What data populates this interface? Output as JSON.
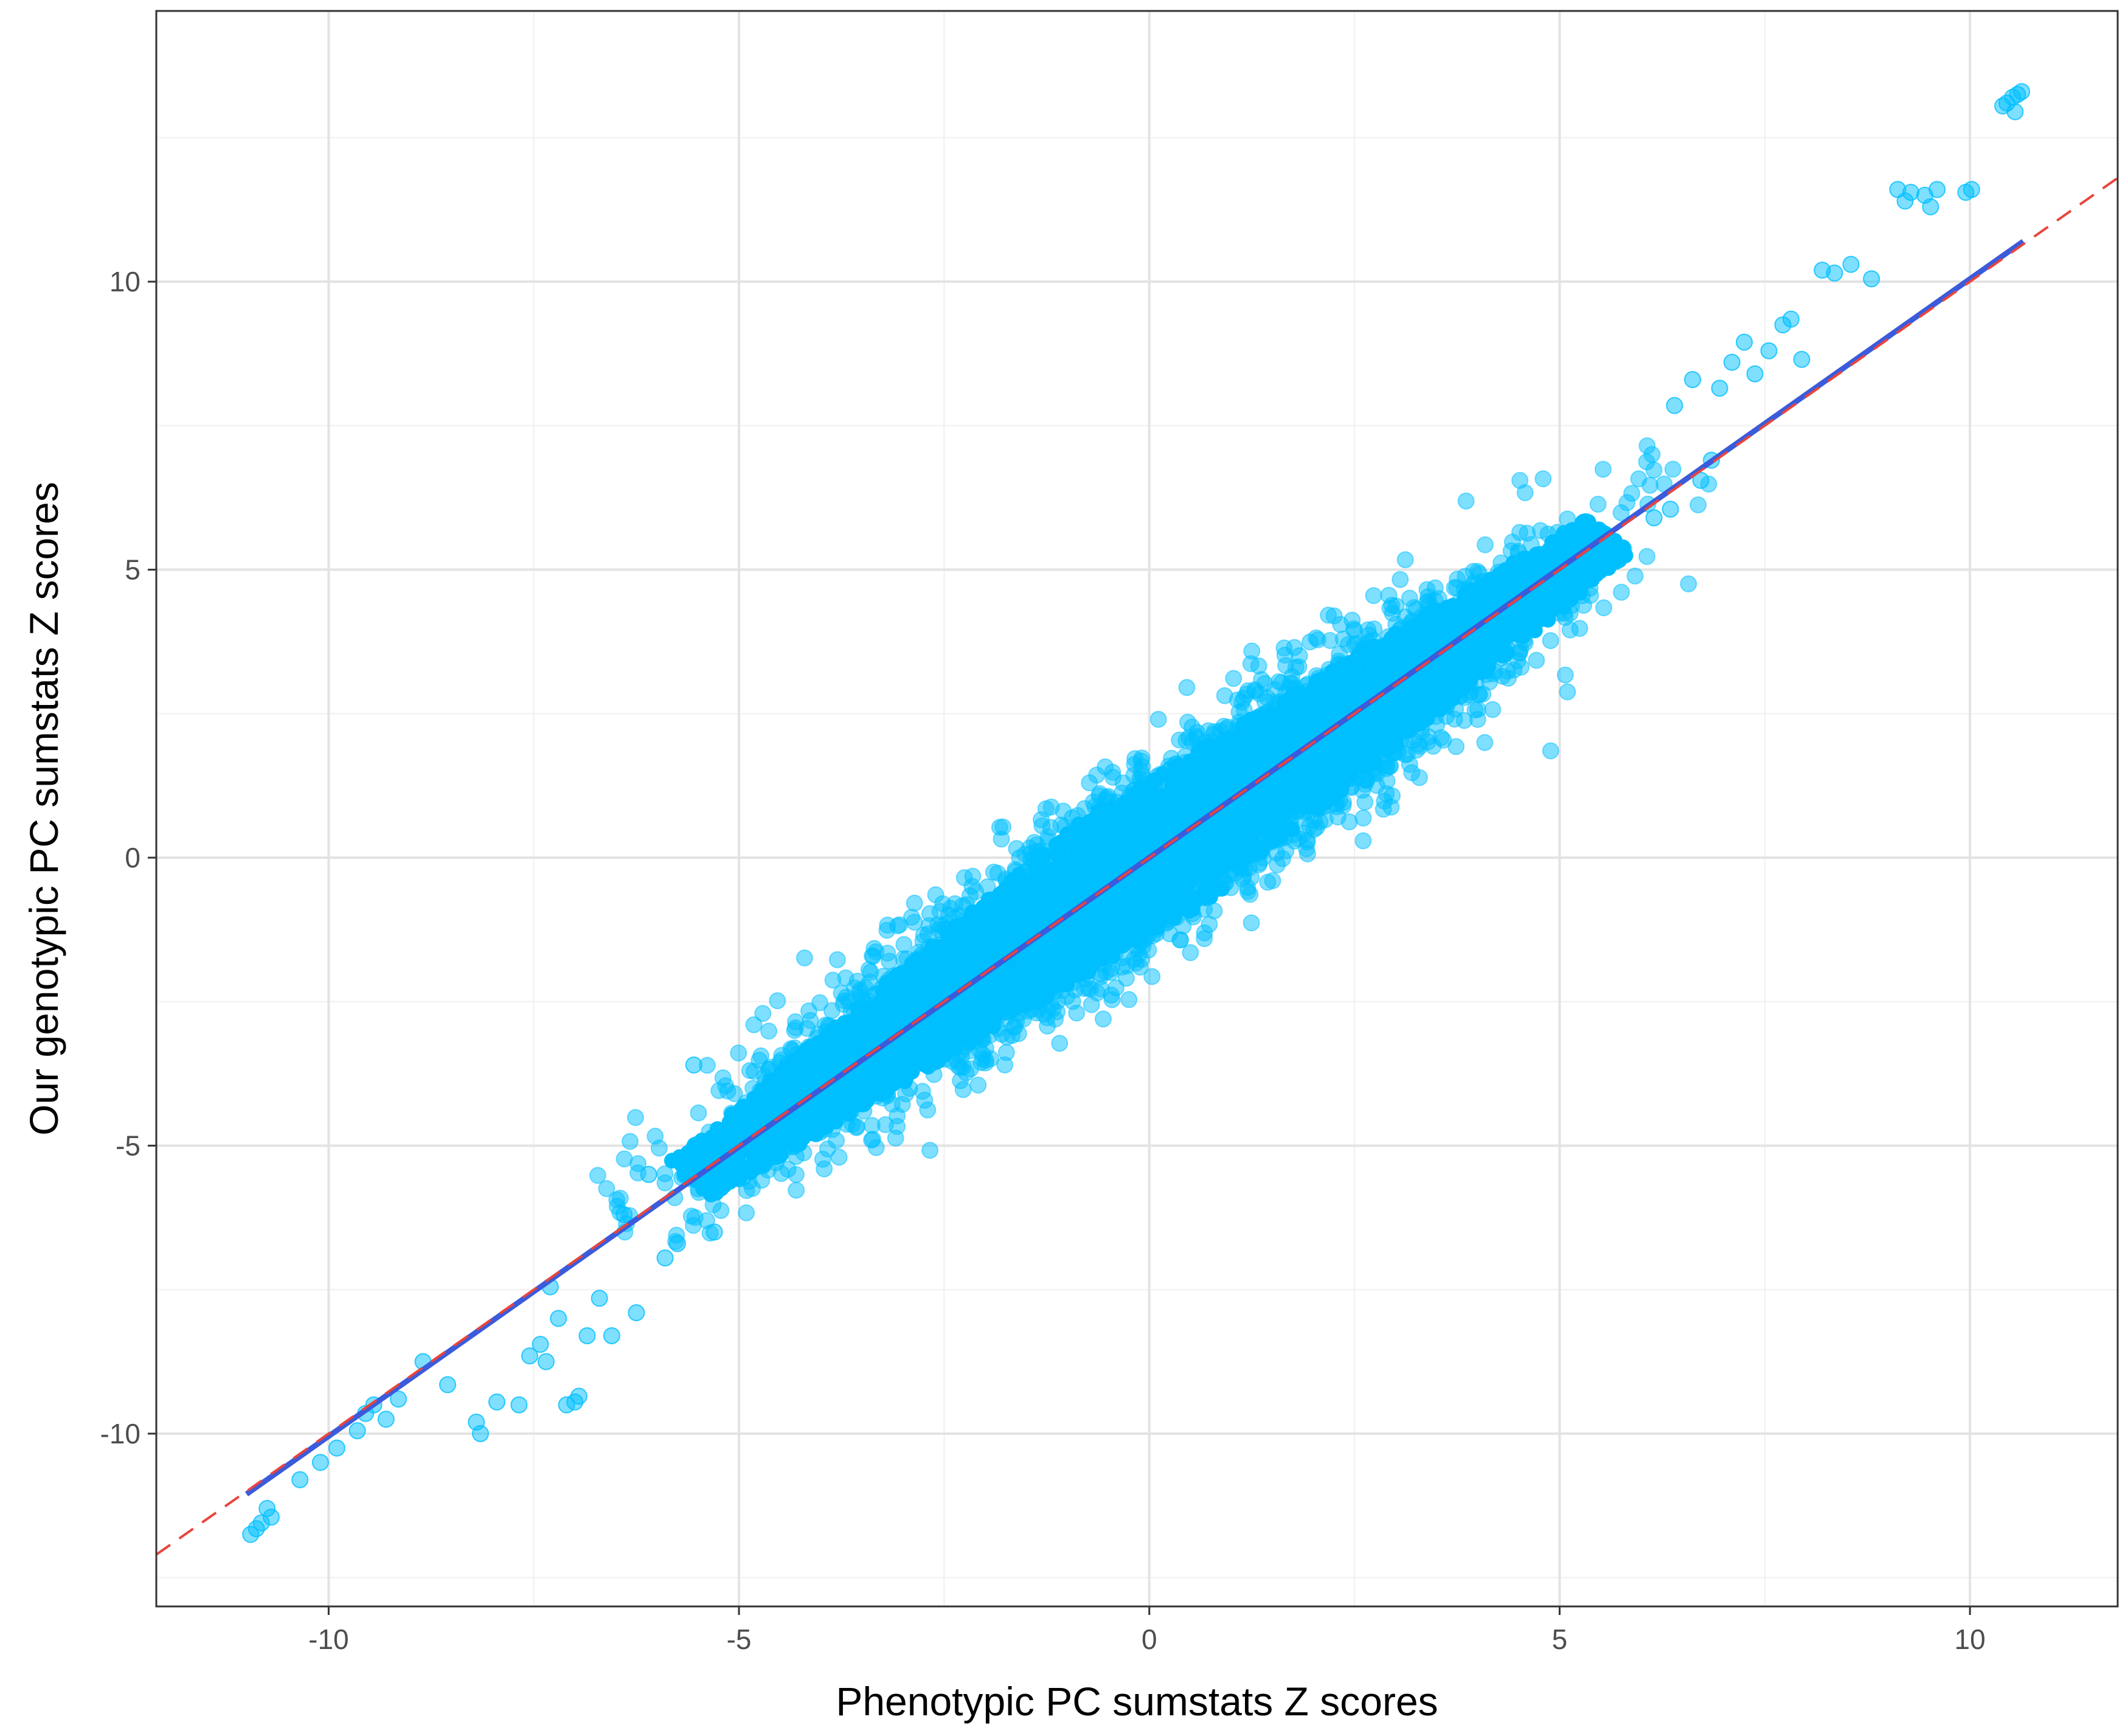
{
  "chart_data": {
    "type": "scatter",
    "title": "",
    "xlabel": "Phenotypic PC sumstats Z scores",
    "ylabel": "Our genotypic PC sumstats Z scores",
    "xlim": [
      -12.1,
      11.8
    ],
    "ylim": [
      -13.0,
      14.7
    ],
    "x_ticks": [
      -10,
      -5,
      0,
      5,
      10
    ],
    "x_tick_labels": [
      "-10",
      "-5",
      "0",
      "5",
      "10"
    ],
    "y_ticks": [
      -10,
      -5,
      0,
      5,
      10
    ],
    "y_tick_labels": [
      "-10",
      "-5",
      "0",
      "5",
      "10"
    ],
    "x_minor_gridlines": [
      -7.5,
      -2.5,
      2.5,
      7.5
    ],
    "y_minor_gridlines": [
      -12.5,
      -7.5,
      -2.5,
      2.5,
      7.5,
      12.5
    ],
    "grid": true,
    "legend": "none",
    "theme": "bw",
    "point_color": "#00BFFF",
    "point_alpha": 0.5,
    "dense_cloud": {
      "description_of_shape": "elongated cloud along the diagonal",
      "center_line": {
        "slope": 1.0,
        "intercept": 0.0
      },
      "x_range": [
        -6.5,
        6.5
      ],
      "perpendicular_spread": 1.05
    },
    "outliers": {
      "x": [
        10.45,
        10.52,
        10.58,
        10.63,
        10.4,
        10.55,
        9.12,
        9.21,
        9.28,
        9.45,
        9.52,
        9.6,
        9.95,
        10.02,
        8.2,
        8.35,
        8.55,
        8.8,
        7.55,
        7.72,
        7.82,
        7.95,
        7.25,
        7.1,
        7.38,
        6.95,
        6.62,
        6.4,
        6.72,
        6.35,
        6.15,
        6.85,
        -10.95,
        -10.88,
        -10.82,
        -10.7,
        -10.75,
        -10.35,
        -10.1,
        -9.9,
        -9.65,
        -9.55,
        -9.45,
        -9.3,
        -9.15,
        -8.85,
        -8.55,
        -8.2,
        -8.15,
        -7.95,
        -7.68,
        -7.55,
        -7.1,
        -7.0,
        -6.95,
        -6.55,
        -6.25,
        -6.4,
        -6.1,
        -5.55,
        -5.75,
        -5.05,
        -7.3,
        -7.35,
        -7.42,
        -7.2,
        -6.85,
        -6.7,
        -5.9,
        -5.3,
        -4.95
      ],
      "y": [
        13.1,
        13.2,
        13.25,
        13.3,
        13.05,
        12.95,
        11.6,
        11.4,
        11.55,
        11.5,
        11.3,
        11.6,
        11.55,
        11.6,
        10.2,
        10.15,
        10.3,
        10.05,
        8.8,
        9.25,
        9.35,
        8.65,
        8.95,
        8.6,
        8.4,
        8.15,
        8.3,
        7.85,
        6.55,
        6.05,
        5.9,
        6.9,
        -11.75,
        -11.65,
        -11.55,
        -11.45,
        -11.3,
        -10.8,
        -10.5,
        -10.25,
        -9.95,
        -9.65,
        -9.5,
        -9.75,
        -9.4,
        -8.75,
        -9.15,
        -9.8,
        -10.0,
        -9.45,
        -9.5,
        -8.65,
        -9.5,
        -9.45,
        -9.35,
        -8.3,
        -7.9,
        -6.2,
        -5.5,
        -3.6,
        -6.7,
        -4.85,
        -7.45,
        -8.75,
        -8.45,
        -8.0,
        -8.3,
        -7.65,
        -6.95,
        -6.5,
        -5.55
      ]
    },
    "lines": [
      {
        "kind": "regression",
        "color": "#3B5BDB",
        "style": "solid",
        "x": [
          -11.0,
          10.65
        ],
        "y": [
          -11.05,
          10.7
        ]
      },
      {
        "kind": "identity",
        "color": "#E8453C",
        "style": "dashed",
        "x": [
          -12.1,
          11.8
        ],
        "y": [
          -12.1,
          11.8
        ]
      }
    ]
  }
}
